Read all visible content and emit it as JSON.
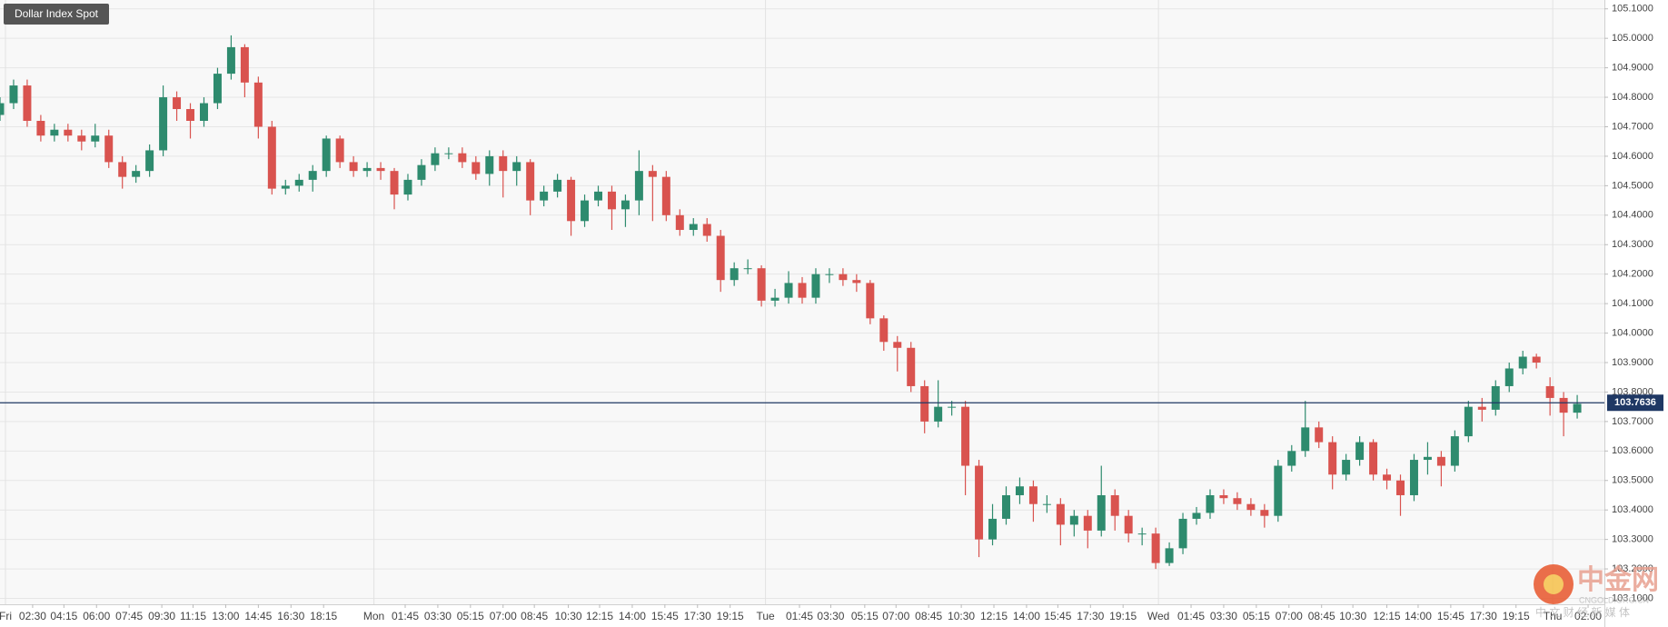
{
  "chart_data": {
    "type": "candlestick",
    "title": "Dollar Index Spot",
    "up_color": "#2e8b6e",
    "down_color": "#d9534f",
    "grid": true,
    "x": [
      0,
      1,
      2,
      3,
      4,
      5,
      6,
      7,
      8,
      9,
      10,
      11,
      12,
      13,
      14,
      15,
      16,
      17,
      18,
      19,
      20,
      21,
      22,
      23,
      24,
      25,
      26,
      27,
      28,
      29,
      30,
      31,
      32,
      33,
      34,
      35,
      36,
      37,
      38,
      39,
      40,
      41,
      42,
      43,
      44,
      45,
      46,
      47,
      48,
      49,
      50,
      51,
      52,
      53,
      54,
      55,
      56,
      57,
      58,
      59,
      60,
      61,
      62,
      63,
      64,
      65,
      66,
      67,
      68,
      69,
      70,
      71,
      72,
      73,
      74,
      75,
      76,
      77,
      78,
      79,
      80,
      81,
      82,
      83,
      84,
      85,
      86,
      87,
      88,
      89,
      90,
      91,
      92,
      93,
      94,
      95,
      96,
      97,
      98,
      99,
      100,
      101,
      102,
      103,
      104,
      105,
      106,
      107,
      108,
      109,
      110,
      111,
      112,
      113,
      114,
      115,
      116
    ],
    "open": [
      104.74,
      104.78,
      104.84,
      104.72,
      104.67,
      104.69,
      104.67,
      104.65,
      104.67,
      104.58,
      104.53,
      104.55,
      104.62,
      104.8,
      104.76,
      104.72,
      104.78,
      104.88,
      104.97,
      104.85,
      104.7,
      104.49,
      104.5,
      104.52,
      104.55,
      104.66,
      104.58,
      104.55,
      104.56,
      104.55,
      104.47,
      104.52,
      104.57,
      104.61,
      104.61,
      104.58,
      104.54,
      104.6,
      104.55,
      104.58,
      104.45,
      104.48,
      104.52,
      104.38,
      104.45,
      104.48,
      104.42,
      104.45,
      104.55,
      104.53,
      104.4,
      104.35,
      104.37,
      104.33,
      104.18,
      104.22,
      104.22,
      104.11,
      104.12,
      104.17,
      104.12,
      104.2,
      104.2,
      104.18,
      104.17,
      104.05,
      103.97,
      103.95,
      103.82,
      103.7,
      103.75,
      103.75,
      103.55,
      103.3,
      103.37,
      103.45,
      103.48,
      103.42,
      103.42,
      103.35,
      103.38,
      103.33,
      103.45,
      103.38,
      103.32,
      103.32,
      103.22,
      103.27,
      103.37,
      103.39,
      103.45,
      103.44,
      103.42,
      103.4,
      103.38,
      103.55,
      103.6,
      103.68,
      103.63,
      103.52,
      103.57,
      103.63,
      103.52,
      103.5,
      103.45,
      103.57,
      103.58,
      103.55,
      103.65,
      103.75,
      103.74,
      103.82,
      103.88,
      103.92,
      103.82,
      103.78,
      103.73
    ],
    "high": [
      104.8,
      104.86,
      104.86,
      104.74,
      104.71,
      104.71,
      104.69,
      104.71,
      104.69,
      104.6,
      104.57,
      104.64,
      104.84,
      104.82,
      104.78,
      104.8,
      104.9,
      105.01,
      104.98,
      104.87,
      104.72,
      104.52,
      104.54,
      104.57,
      104.67,
      104.67,
      104.6,
      104.58,
      104.58,
      104.56,
      104.54,
      104.59,
      104.63,
      104.63,
      104.63,
      104.6,
      104.62,
      104.62,
      104.6,
      104.59,
      104.5,
      104.54,
      104.53,
      104.47,
      104.5,
      104.5,
      104.47,
      104.62,
      104.57,
      104.55,
      104.42,
      104.39,
      104.39,
      104.35,
      104.24,
      104.25,
      104.23,
      104.15,
      104.21,
      104.19,
      104.22,
      104.22,
      104.22,
      104.2,
      104.18,
      104.06,
      103.99,
      103.97,
      103.84,
      103.84,
      103.77,
      103.77,
      103.57,
      103.42,
      103.48,
      103.51,
      103.5,
      103.45,
      103.44,
      103.4,
      103.4,
      103.55,
      103.47,
      103.4,
      103.34,
      103.34,
      103.29,
      103.39,
      103.41,
      103.47,
      103.47,
      103.46,
      103.44,
      103.42,
      103.57,
      103.62,
      103.77,
      103.7,
      103.65,
      103.59,
      103.65,
      103.64,
      103.54,
      103.52,
      103.59,
      103.63,
      103.6,
      103.67,
      103.77,
      103.78,
      103.84,
      103.9,
      103.94,
      103.93,
      103.85,
      103.8,
      103.79
    ],
    "low": [
      104.72,
      104.76,
      104.7,
      104.65,
      104.65,
      104.65,
      104.62,
      104.63,
      104.56,
      104.49,
      104.51,
      104.53,
      104.6,
      104.72,
      104.66,
      104.7,
      104.76,
      104.86,
      104.8,
      104.66,
      104.47,
      104.47,
      104.48,
      104.48,
      104.53,
      104.56,
      104.53,
      104.53,
      104.52,
      104.42,
      104.45,
      104.5,
      104.55,
      104.59,
      104.56,
      104.52,
      104.5,
      104.46,
      104.5,
      104.4,
      104.43,
      104.46,
      104.33,
      104.36,
      104.43,
      104.35,
      104.36,
      104.4,
      104.38,
      104.38,
      104.33,
      104.33,
      104.31,
      104.14,
      104.16,
      104.2,
      104.09,
      104.09,
      104.1,
      104.1,
      104.1,
      104.17,
      104.16,
      104.14,
      104.03,
      103.94,
      103.87,
      103.8,
      103.66,
      103.68,
      103.72,
      103.45,
      103.24,
      103.28,
      103.35,
      103.42,
      103.36,
      103.39,
      103.28,
      103.31,
      103.27,
      103.31,
      103.33,
      103.29,
      103.28,
      103.2,
      103.21,
      103.25,
      103.35,
      103.37,
      103.42,
      103.4,
      103.38,
      103.34,
      103.36,
      103.53,
      103.58,
      103.61,
      103.47,
      103.5,
      103.55,
      103.5,
      103.47,
      103.38,
      103.43,
      103.52,
      103.48,
      103.53,
      103.63,
      103.7,
      103.72,
      103.8,
      103.86,
      103.88,
      103.72,
      103.65,
      103.71
    ],
    "close": [
      104.78,
      104.84,
      104.72,
      104.67,
      104.69,
      104.67,
      104.65,
      104.67,
      104.58,
      104.53,
      104.55,
      104.62,
      104.8,
      104.76,
      104.72,
      104.78,
      104.88,
      104.97,
      104.85,
      104.7,
      104.49,
      104.5,
      104.52,
      104.55,
      104.66,
      104.58,
      104.55,
      104.56,
      104.55,
      104.47,
      104.52,
      104.57,
      104.61,
      104.61,
      104.58,
      104.54,
      104.6,
      104.55,
      104.58,
      104.45,
      104.48,
      104.52,
      104.38,
      104.45,
      104.48,
      104.42,
      104.45,
      104.55,
      104.53,
      104.4,
      104.35,
      104.37,
      104.33,
      104.18,
      104.22,
      104.22,
      104.11,
      104.12,
      104.17,
      104.12,
      104.2,
      104.2,
      104.18,
      104.17,
      104.05,
      103.97,
      103.95,
      103.82,
      103.7,
      103.75,
      103.75,
      103.55,
      103.3,
      103.37,
      103.45,
      103.48,
      103.42,
      103.42,
      103.35,
      103.38,
      103.33,
      103.45,
      103.38,
      103.32,
      103.32,
      103.22,
      103.27,
      103.37,
      103.39,
      103.45,
      103.44,
      103.42,
      103.4,
      103.38,
      103.55,
      103.6,
      103.68,
      103.63,
      103.52,
      103.57,
      103.63,
      103.52,
      103.5,
      103.45,
      103.57,
      103.58,
      103.55,
      103.65,
      103.75,
      103.74,
      103.82,
      103.88,
      103.92,
      103.9,
      103.78,
      103.73,
      103.76
    ],
    "xlim": [
      0,
      118
    ],
    "xticks": [
      {
        "value": 2.4,
        "label": "02:30"
      },
      {
        "value": 4.7,
        "label": "04:15"
      },
      {
        "value": 7.1,
        "label": "06:00"
      },
      {
        "value": 9.5,
        "label": "07:45"
      },
      {
        "value": 11.9,
        "label": "09:30"
      },
      {
        "value": 14.2,
        "label": "11:15"
      },
      {
        "value": 16.6,
        "label": "13:00"
      },
      {
        "value": 19.0,
        "label": "14:45"
      },
      {
        "value": 21.4,
        "label": "16:30"
      },
      {
        "value": 23.8,
        "label": "18:15"
      },
      {
        "value": 29.8,
        "label": "01:45"
      },
      {
        "value": 32.2,
        "label": "03:30"
      },
      {
        "value": 34.6,
        "label": "05:15"
      },
      {
        "value": 37.0,
        "label": "07:00"
      },
      {
        "value": 39.3,
        "label": "08:45"
      },
      {
        "value": 41.8,
        "label": "10:30"
      },
      {
        "value": 44.1,
        "label": "12:15"
      },
      {
        "value": 46.5,
        "label": "14:00"
      },
      {
        "value": 48.9,
        "label": "15:45"
      },
      {
        "value": 51.3,
        "label": "17:30"
      },
      {
        "value": 53.7,
        "label": "19:15"
      },
      {
        "value": 58.8,
        "label": "01:45"
      },
      {
        "value": 61.1,
        "label": "03:30"
      },
      {
        "value": 63.6,
        "label": "05:15"
      },
      {
        "value": 65.9,
        "label": "07:00"
      },
      {
        "value": 68.3,
        "label": "08:45"
      },
      {
        "value": 70.7,
        "label": "10:30"
      },
      {
        "value": 73.1,
        "label": "12:15"
      },
      {
        "value": 75.5,
        "label": "14:00"
      },
      {
        "value": 77.8,
        "label": "15:45"
      },
      {
        "value": 80.2,
        "label": "17:30"
      },
      {
        "value": 82.6,
        "label": "19:15"
      },
      {
        "value": 87.6,
        "label": "01:45"
      },
      {
        "value": 90.0,
        "label": "03:30"
      },
      {
        "value": 92.4,
        "label": "05:15"
      },
      {
        "value": 94.8,
        "label": "07:00"
      },
      {
        "value": 97.2,
        "label": "08:45"
      },
      {
        "value": 99.5,
        "label": "10:30"
      },
      {
        "value": 102.0,
        "label": "12:15"
      },
      {
        "value": 104.3,
        "label": "14:00"
      },
      {
        "value": 106.7,
        "label": "15:45"
      },
      {
        "value": 109.1,
        "label": "17:30"
      },
      {
        "value": 111.5,
        "label": "19:15"
      },
      {
        "value": 116.8,
        "label": "02:00"
      }
    ],
    "day_ticks": [
      {
        "value": 0.4,
        "label": "Fri"
      },
      {
        "value": 27.5,
        "label": "Mon"
      },
      {
        "value": 56.3,
        "label": "Tue"
      },
      {
        "value": 85.2,
        "label": "Wed"
      },
      {
        "value": 114.2,
        "label": "Thu"
      }
    ],
    "ylim": [
      103.08,
      105.13
    ],
    "yticks": [
      {
        "value": 103.1,
        "label": "103.1000"
      },
      {
        "value": 103.2,
        "label": "103.2000"
      },
      {
        "value": 103.3,
        "label": "103.3000"
      },
      {
        "value": 103.4,
        "label": "103.4000"
      },
      {
        "value": 103.5,
        "label": "103.5000"
      },
      {
        "value": 103.6,
        "label": "103.6000"
      },
      {
        "value": 103.7,
        "label": "103.7000"
      },
      {
        "value": 103.8,
        "label": "103.8000"
      },
      {
        "value": 103.9,
        "label": "103.9000"
      },
      {
        "value": 104.0,
        "label": "104.0000"
      },
      {
        "value": 104.1,
        "label": "104.1000"
      },
      {
        "value": 104.2,
        "label": "104.2000"
      },
      {
        "value": 104.3,
        "label": "104.3000"
      },
      {
        "value": 104.4,
        "label": "104.4000"
      },
      {
        "value": 104.5,
        "label": "104.5000"
      },
      {
        "value": 104.6,
        "label": "104.6000"
      },
      {
        "value": 104.7,
        "label": "104.7000"
      },
      {
        "value": 104.8,
        "label": "104.8000"
      },
      {
        "value": 104.9,
        "label": "104.9000"
      },
      {
        "value": 105.0,
        "label": "105.0000"
      },
      {
        "value": 105.1,
        "label": "105.1000"
      }
    ],
    "last_price": 103.7636,
    "last_price_color": "#1f3864",
    "watermark": {
      "name": "中金网",
      "url": "CNGOLD.ORG.CN",
      "tagline": "中 文 财 经 新 媒 体"
    }
  }
}
